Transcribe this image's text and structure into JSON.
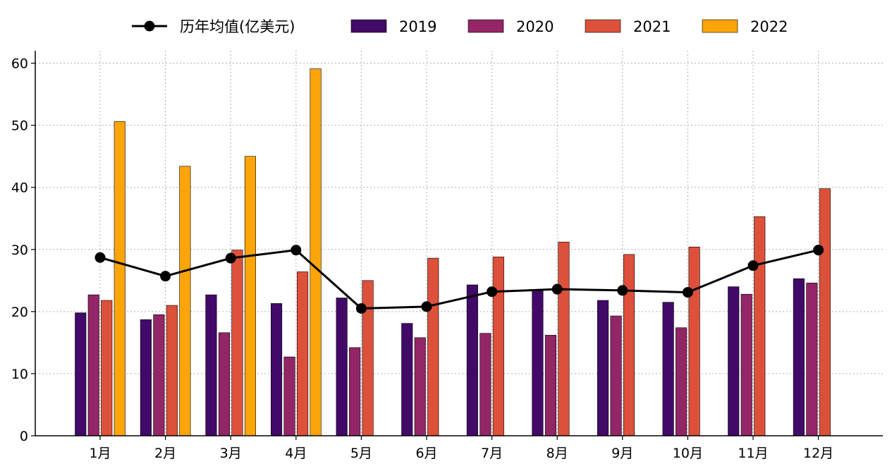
{
  "chart_data": {
    "type": "bar",
    "title": "",
    "xlabel": "",
    "ylabel": "",
    "ylim": [
      0,
      62
    ],
    "yticks": [
      0,
      10,
      20,
      30,
      40,
      50,
      60
    ],
    "grid": true,
    "legend_position": "top-center",
    "categories": [
      "1月",
      "2月",
      "3月",
      "4月",
      "5月",
      "6月",
      "7月",
      "8月",
      "9月",
      "10月",
      "11月",
      "12月"
    ],
    "series": [
      {
        "name": "2019",
        "type": "bar",
        "color": "#420a68",
        "values": [
          19.8,
          18.7,
          22.7,
          21.3,
          22.2,
          18.1,
          24.3,
          23.5,
          21.8,
          21.5,
          24.0,
          25.3
        ]
      },
      {
        "name": "2020",
        "type": "bar",
        "color": "#932667",
        "values": [
          22.7,
          19.5,
          16.6,
          12.7,
          14.2,
          15.8,
          16.5,
          16.2,
          19.3,
          17.4,
          22.8,
          24.6
        ]
      },
      {
        "name": "2021",
        "type": "bar",
        "color": "#dd513a",
        "values": [
          21.8,
          21.0,
          29.9,
          26.4,
          25.0,
          28.6,
          28.8,
          31.2,
          29.2,
          30.4,
          35.3,
          39.8
        ]
      },
      {
        "name": "2022",
        "type": "bar",
        "color": "#fca50a",
        "values": [
          50.6,
          43.4,
          45.0,
          59.1,
          null,
          null,
          null,
          null,
          null,
          null,
          null,
          null
        ]
      },
      {
        "name": "历年均值(亿美元)",
        "type": "line",
        "color": "#000000",
        "values": [
          28.7,
          25.7,
          28.6,
          29.9,
          20.5,
          20.8,
          23.2,
          23.6,
          23.4,
          23.1,
          27.4,
          29.9
        ]
      }
    ]
  }
}
